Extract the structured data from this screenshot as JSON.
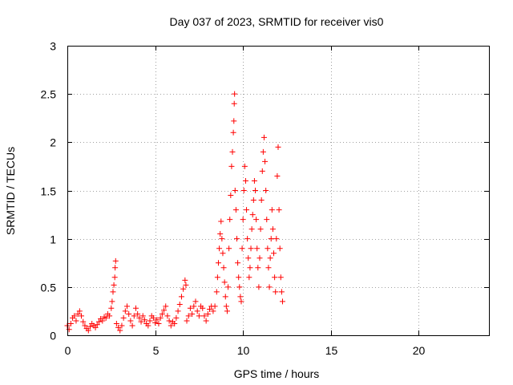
{
  "chart_data": {
    "type": "scatter",
    "title": "Day 037 of 2023, SRMTID for receiver vis0",
    "xlabel": "GPS time / hours",
    "ylabel": "SRMTID / TECUs",
    "xlim": [
      0,
      24
    ],
    "ylim": [
      0,
      3
    ],
    "xticks": [
      0,
      5,
      10,
      15,
      20
    ],
    "xtick_labels": [
      "0",
      "5",
      "10",
      "15",
      "20"
    ],
    "yticks": [
      0,
      0.5,
      1,
      1.5,
      2,
      2.5,
      3
    ],
    "ytick_labels": [
      "0",
      "0.5",
      "1",
      "1.5",
      "2",
      "2.5",
      "3"
    ],
    "grid": true,
    "marker": "+",
    "series": [
      {
        "name": "SRMTID",
        "color": "#ff0000",
        "points": [
          [
            0.0,
            0.1
          ],
          [
            0.1,
            0.06
          ],
          [
            0.2,
            0.12
          ],
          [
            0.3,
            0.18
          ],
          [
            0.4,
            0.2
          ],
          [
            0.5,
            0.15
          ],
          [
            0.6,
            0.22
          ],
          [
            0.7,
            0.25
          ],
          [
            0.8,
            0.2
          ],
          [
            0.9,
            0.14
          ],
          [
            1.0,
            0.1
          ],
          [
            1.1,
            0.07
          ],
          [
            1.2,
            0.05
          ],
          [
            1.3,
            0.09
          ],
          [
            1.4,
            0.12
          ],
          [
            1.5,
            0.1
          ],
          [
            1.6,
            0.08
          ],
          [
            1.7,
            0.11
          ],
          [
            1.8,
            0.14
          ],
          [
            1.9,
            0.17
          ],
          [
            2.0,
            0.15
          ],
          [
            2.1,
            0.19
          ],
          [
            2.2,
            0.18
          ],
          [
            2.3,
            0.22
          ],
          [
            2.4,
            0.2
          ],
          [
            2.5,
            0.28
          ],
          [
            2.55,
            0.35
          ],
          [
            2.6,
            0.45
          ],
          [
            2.65,
            0.52
          ],
          [
            2.7,
            0.6
          ],
          [
            2.75,
            0.77
          ],
          [
            2.72,
            0.7
          ],
          [
            2.8,
            0.12
          ],
          [
            2.9,
            0.08
          ],
          [
            3.0,
            0.05
          ],
          [
            3.1,
            0.1
          ],
          [
            3.2,
            0.18
          ],
          [
            3.3,
            0.25
          ],
          [
            3.4,
            0.3
          ],
          [
            3.5,
            0.22
          ],
          [
            3.6,
            0.15
          ],
          [
            3.7,
            0.1
          ],
          [
            3.8,
            0.2
          ],
          [
            3.9,
            0.28
          ],
          [
            4.0,
            0.22
          ],
          [
            4.1,
            0.18
          ],
          [
            4.2,
            0.14
          ],
          [
            4.3,
            0.2
          ],
          [
            4.4,
            0.16
          ],
          [
            4.5,
            0.12
          ],
          [
            4.6,
            0.1
          ],
          [
            4.7,
            0.15
          ],
          [
            4.8,
            0.2
          ],
          [
            4.9,
            0.18
          ],
          [
            5.0,
            0.13
          ],
          [
            5.1,
            0.16
          ],
          [
            5.2,
            0.12
          ],
          [
            5.3,
            0.18
          ],
          [
            5.4,
            0.22
          ],
          [
            5.5,
            0.26
          ],
          [
            5.6,
            0.3
          ],
          [
            5.7,
            0.2
          ],
          [
            5.8,
            0.15
          ],
          [
            5.9,
            0.1
          ],
          [
            6.0,
            0.14
          ],
          [
            6.1,
            0.12
          ],
          [
            6.2,
            0.18
          ],
          [
            6.3,
            0.25
          ],
          [
            6.4,
            0.32
          ],
          [
            6.5,
            0.4
          ],
          [
            6.6,
            0.48
          ],
          [
            6.7,
            0.57
          ],
          [
            6.75,
            0.52
          ],
          [
            6.8,
            0.15
          ],
          [
            6.9,
            0.2
          ],
          [
            7.0,
            0.28
          ],
          [
            7.1,
            0.22
          ],
          [
            7.2,
            0.3
          ],
          [
            7.3,
            0.35
          ],
          [
            7.4,
            0.25
          ],
          [
            7.5,
            0.2
          ],
          [
            7.6,
            0.3
          ],
          [
            7.7,
            0.28
          ],
          [
            7.8,
            0.2
          ],
          [
            7.9,
            0.15
          ],
          [
            8.0,
            0.22
          ],
          [
            8.1,
            0.27
          ],
          [
            8.2,
            0.3
          ],
          [
            8.3,
            0.25
          ],
          [
            8.4,
            0.3
          ],
          [
            8.5,
            0.45
          ],
          [
            8.55,
            0.6
          ],
          [
            8.6,
            0.75
          ],
          [
            8.65,
            0.9
          ],
          [
            8.7,
            1.05
          ],
          [
            8.75,
            1.18
          ],
          [
            8.8,
            1.0
          ],
          [
            8.85,
            0.85
          ],
          [
            8.9,
            0.7
          ],
          [
            8.95,
            0.55
          ],
          [
            9.0,
            0.4
          ],
          [
            9.05,
            0.3
          ],
          [
            9.1,
            0.25
          ],
          [
            9.15,
            0.5
          ],
          [
            9.2,
            0.9
          ],
          [
            9.25,
            1.2
          ],
          [
            9.3,
            1.45
          ],
          [
            9.35,
            1.75
          ],
          [
            9.4,
            1.9
          ],
          [
            9.45,
            2.1
          ],
          [
            9.5,
            2.4
          ],
          [
            9.52,
            2.5
          ],
          [
            9.48,
            2.22
          ],
          [
            9.55,
            1.5
          ],
          [
            9.6,
            1.3
          ],
          [
            9.65,
            1.0
          ],
          [
            9.7,
            0.75
          ],
          [
            9.75,
            0.6
          ],
          [
            9.8,
            0.5
          ],
          [
            9.85,
            0.4
          ],
          [
            9.9,
            0.35
          ],
          [
            9.95,
            0.9
          ],
          [
            10.0,
            1.2
          ],
          [
            10.05,
            1.5
          ],
          [
            10.1,
            1.75
          ],
          [
            10.15,
            1.6
          ],
          [
            10.2,
            1.3
          ],
          [
            10.25,
            1.0
          ],
          [
            10.3,
            0.8
          ],
          [
            10.35,
            0.6
          ],
          [
            10.4,
            0.7
          ],
          [
            10.45,
            0.9
          ],
          [
            10.5,
            1.1
          ],
          [
            10.55,
            1.25
          ],
          [
            10.6,
            1.4
          ],
          [
            10.65,
            1.6
          ],
          [
            10.7,
            1.5
          ],
          [
            10.75,
            1.2
          ],
          [
            10.8,
            0.9
          ],
          [
            10.85,
            0.7
          ],
          [
            10.9,
            0.5
          ],
          [
            10.95,
            0.8
          ],
          [
            11.0,
            1.1
          ],
          [
            11.05,
            1.4
          ],
          [
            11.1,
            1.7
          ],
          [
            11.15,
            1.9
          ],
          [
            11.2,
            2.05
          ],
          [
            11.25,
            1.8
          ],
          [
            11.3,
            1.5
          ],
          [
            11.35,
            1.2
          ],
          [
            11.4,
            0.9
          ],
          [
            11.45,
            0.7
          ],
          [
            11.5,
            0.5
          ],
          [
            11.55,
            0.8
          ],
          [
            11.6,
            1.0
          ],
          [
            11.65,
            1.3
          ],
          [
            11.7,
            1.1
          ],
          [
            11.75,
            0.85
          ],
          [
            11.8,
            0.6
          ],
          [
            11.85,
            0.45
          ],
          [
            11.9,
            1.0
          ],
          [
            11.95,
            1.65
          ],
          [
            12.0,
            1.95
          ],
          [
            12.05,
            1.3
          ],
          [
            12.1,
            0.9
          ],
          [
            12.15,
            0.6
          ],
          [
            12.2,
            0.45
          ],
          [
            12.25,
            0.35
          ]
        ]
      }
    ]
  }
}
